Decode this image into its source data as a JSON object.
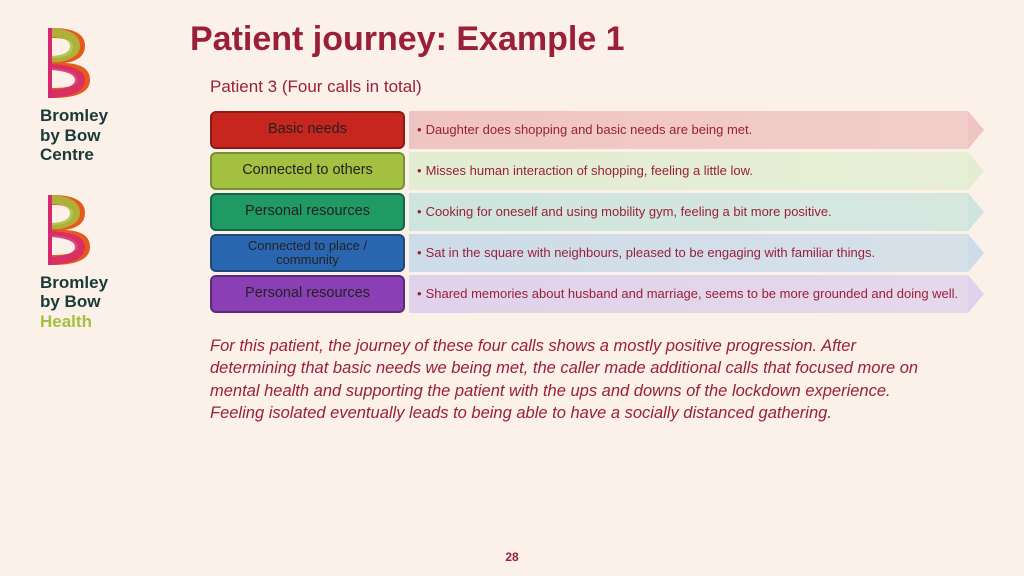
{
  "sidebar": {
    "org1_lines": [
      "Bromley",
      "by Bow",
      "Centre"
    ],
    "org2_lines": [
      "Bromley",
      "by Bow"
    ],
    "org2_accent": "Health",
    "logo_colors": {
      "pink": "#d6286e",
      "orange": "#e85a1a",
      "green": "#a3c040",
      "dark": "#1a3a3a"
    }
  },
  "title": "Patient journey: Example 1",
  "subtitle": "Patient 3 (Four calls in total)",
  "rows": [
    {
      "label": "Basic needs",
      "pill_bg": "#c7261f",
      "pill_border": "#8f1a15",
      "arrow_bg": "#f0c4c2",
      "text": "Daughter does shopping and basic needs are being met."
    },
    {
      "label": "Connected to others",
      "pill_bg": "#a3c040",
      "pill_border": "#7a9030",
      "arrow_bg": "#e2edd1",
      "text": "Misses human interaction of shopping, feeling a little low."
    },
    {
      "label": "Personal resources",
      "pill_bg": "#1f9a63",
      "pill_border": "#14664a",
      "arrow_bg": "#cde5de",
      "text": "Cooking for oneself and using mobility gym, feeling a bit more positive."
    },
    {
      "label": "Connected to place / community",
      "pill_bg": "#2a66b0",
      "pill_border": "#1d4878",
      "arrow_bg": "#cddce9",
      "text": "Sat in the square with neighbours, pleased to be engaging with familiar things."
    },
    {
      "label": "Personal resources",
      "pill_bg": "#8a3fb5",
      "pill_border": "#5d2a7a",
      "arrow_bg": "#e0d2ea",
      "text": "Shared memories about husband and marriage, seems to be more grounded and doing well."
    }
  ],
  "summary": "For this patient, the journey of these four calls shows a mostly positive progression. After determining that basic needs we being met, the caller made additional calls that focused more on mental health and supporting the patient with the ups and downs of the lockdown experience. Feeling isolated eventually leads to being able to have a socially distanced gathering.",
  "page_number": "28",
  "colors": {
    "bg": "#fbf1e8",
    "text_primary": "#9a1f3a"
  }
}
